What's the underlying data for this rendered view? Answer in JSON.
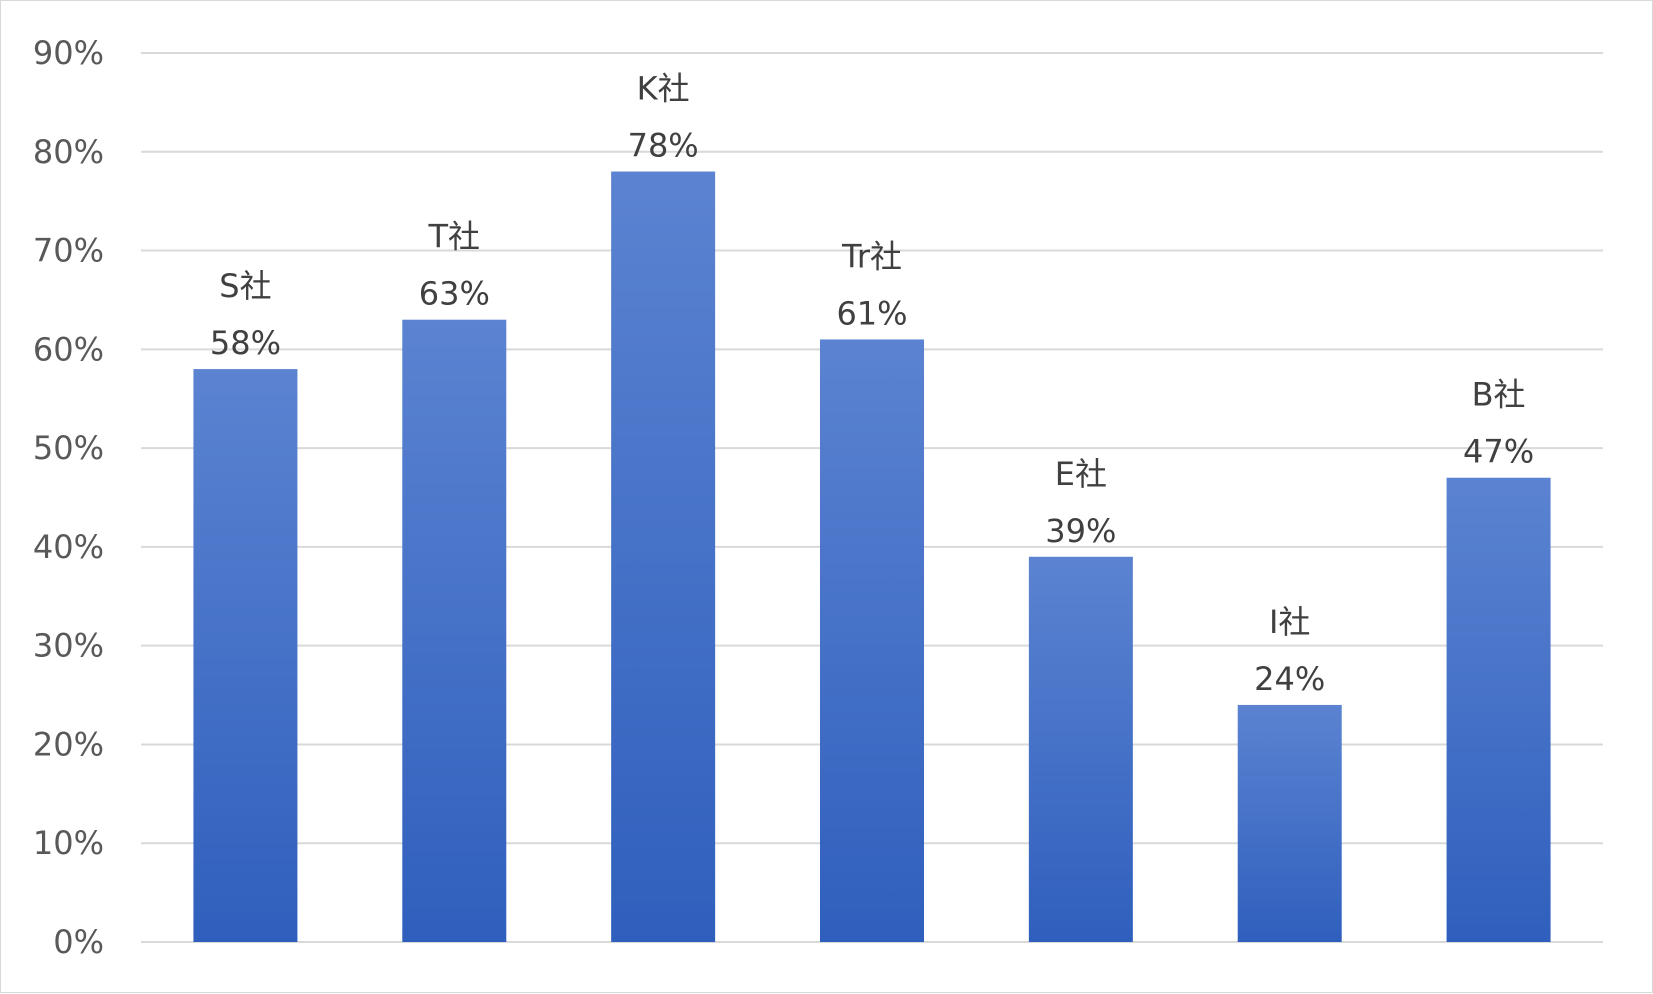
{
  "chart_data": {
    "type": "bar",
    "title": "",
    "xlabel": "",
    "ylabel": "",
    "categories": [
      "S社",
      "T社",
      "K社",
      "Tr社",
      "E社",
      "I社",
      "B社"
    ],
    "values": [
      58,
      63,
      78,
      61,
      39,
      24,
      47
    ],
    "value_labels": [
      "58%",
      "63%",
      "78%",
      "61%",
      "39%",
      "24%",
      "47%"
    ],
    "ylim": [
      0,
      90
    ],
    "y_ticks": [
      0,
      10,
      20,
      30,
      40,
      50,
      60,
      70,
      80,
      90
    ],
    "y_tick_labels": [
      "0%",
      "10%",
      "20%",
      "30%",
      "40%",
      "50%",
      "60%",
      "70%",
      "80%",
      "90%"
    ],
    "grid": true,
    "legend": "none",
    "colors": {
      "bar_top": "#5b83d1",
      "bar_bottom": "#2f5fbd",
      "grid": "#d9d9d9",
      "tick_text": "#595959",
      "label_text": "#404040"
    }
  }
}
